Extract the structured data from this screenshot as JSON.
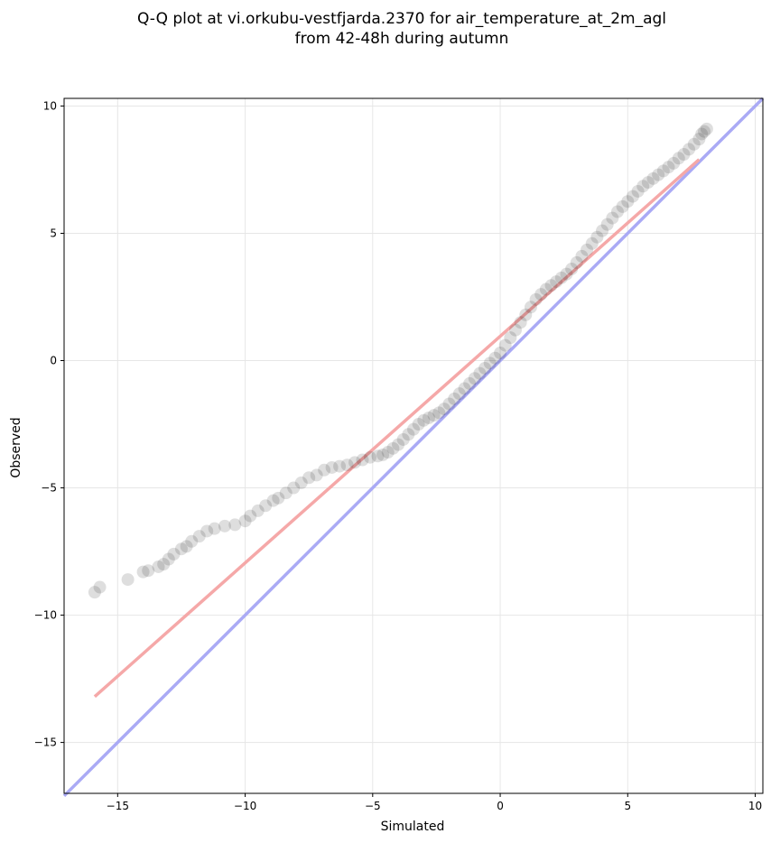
{
  "chart_data": {
    "type": "scatter",
    "title_lines": [
      "Q-Q plot at vi.orkubu-vestfjarda.2370 for air_temperature_at_2m_agl",
      "from 42-48h during autumn"
    ],
    "xlabel": "Simulated",
    "ylabel": "Observed",
    "xlim": [
      -17.1,
      10.3
    ],
    "ylim": [
      -17.0,
      10.3
    ],
    "xticks": [
      -15,
      -10,
      -5,
      0,
      5,
      10
    ],
    "yticks": [
      -15,
      -10,
      -5,
      0,
      5,
      10
    ],
    "xtick_labels": [
      "−15",
      "−10",
      "−5",
      "0",
      "5",
      "10"
    ],
    "ytick_labels": [
      "−15",
      "−10",
      "−5",
      "0",
      "5",
      "10"
    ],
    "grid": true,
    "identity_line": {
      "color": "#aaaaf5",
      "from": [
        -17.1,
        -17.1
      ],
      "to": [
        10.3,
        10.3
      ]
    },
    "fit_line": {
      "color": "#f5a8a8",
      "from": [
        -15.9,
        -13.2
      ],
      "to": [
        7.8,
        7.9
      ]
    },
    "point_color": "#000000",
    "series": [
      {
        "points": [
          [
            -15.9,
            -9.1
          ],
          [
            -15.7,
            -8.9
          ],
          [
            -14.6,
            -8.6
          ],
          [
            -14.0,
            -8.3
          ],
          [
            -13.8,
            -8.25
          ],
          [
            -13.4,
            -8.1
          ],
          [
            -13.2,
            -8.0
          ],
          [
            -13.0,
            -7.8
          ],
          [
            -12.8,
            -7.6
          ],
          [
            -12.5,
            -7.4
          ],
          [
            -12.3,
            -7.3
          ],
          [
            -12.1,
            -7.1
          ],
          [
            -11.8,
            -6.9
          ],
          [
            -11.5,
            -6.7
          ],
          [
            -11.2,
            -6.6
          ],
          [
            -10.8,
            -6.5
          ],
          [
            -10.4,
            -6.45
          ],
          [
            -10.0,
            -6.3
          ],
          [
            -9.8,
            -6.1
          ],
          [
            -9.5,
            -5.9
          ],
          [
            -9.2,
            -5.7
          ],
          [
            -8.9,
            -5.5
          ],
          [
            -8.7,
            -5.4
          ],
          [
            -8.4,
            -5.2
          ],
          [
            -8.1,
            -5.0
          ],
          [
            -7.8,
            -4.8
          ],
          [
            -7.5,
            -4.6
          ],
          [
            -7.2,
            -4.5
          ],
          [
            -6.9,
            -4.3
          ],
          [
            -6.6,
            -4.2
          ],
          [
            -6.3,
            -4.15
          ],
          [
            -6.0,
            -4.1
          ],
          [
            -5.7,
            -4.0
          ],
          [
            -5.4,
            -3.9
          ],
          [
            -5.1,
            -3.8
          ],
          [
            -4.8,
            -3.75
          ],
          [
            -4.6,
            -3.7
          ],
          [
            -4.4,
            -3.6
          ],
          [
            -4.2,
            -3.45
          ],
          [
            -4.0,
            -3.3
          ],
          [
            -3.8,
            -3.1
          ],
          [
            -3.6,
            -2.9
          ],
          [
            -3.4,
            -2.7
          ],
          [
            -3.2,
            -2.5
          ],
          [
            -3.0,
            -2.35
          ],
          [
            -2.8,
            -2.25
          ],
          [
            -2.6,
            -2.15
          ],
          [
            -2.4,
            -2.05
          ],
          [
            -2.2,
            -1.9
          ],
          [
            -2.0,
            -1.7
          ],
          [
            -1.8,
            -1.5
          ],
          [
            -1.6,
            -1.3
          ],
          [
            -1.4,
            -1.1
          ],
          [
            -1.2,
            -0.9
          ],
          [
            -1.0,
            -0.7
          ],
          [
            -0.8,
            -0.5
          ],
          [
            -0.6,
            -0.3
          ],
          [
            -0.4,
            -0.1
          ],
          [
            -0.2,
            0.1
          ],
          [
            0.0,
            0.3
          ],
          [
            0.2,
            0.6
          ],
          [
            0.4,
            0.9
          ],
          [
            0.6,
            1.2
          ],
          [
            0.8,
            1.5
          ],
          [
            1.0,
            1.8
          ],
          [
            1.2,
            2.1
          ],
          [
            1.4,
            2.4
          ],
          [
            1.6,
            2.6
          ],
          [
            1.8,
            2.8
          ],
          [
            2.0,
            2.95
          ],
          [
            2.2,
            3.1
          ],
          [
            2.4,
            3.25
          ],
          [
            2.6,
            3.4
          ],
          [
            2.8,
            3.6
          ],
          [
            3.0,
            3.85
          ],
          [
            3.2,
            4.1
          ],
          [
            3.4,
            4.35
          ],
          [
            3.6,
            4.6
          ],
          [
            3.8,
            4.85
          ],
          [
            4.0,
            5.1
          ],
          [
            4.2,
            5.35
          ],
          [
            4.4,
            5.6
          ],
          [
            4.6,
            5.85
          ],
          [
            4.8,
            6.05
          ],
          [
            5.0,
            6.25
          ],
          [
            5.2,
            6.45
          ],
          [
            5.4,
            6.65
          ],
          [
            5.6,
            6.85
          ],
          [
            5.8,
            7.0
          ],
          [
            6.0,
            7.15
          ],
          [
            6.2,
            7.3
          ],
          [
            6.4,
            7.45
          ],
          [
            6.6,
            7.6
          ],
          [
            6.8,
            7.75
          ],
          [
            7.0,
            7.95
          ],
          [
            7.2,
            8.1
          ],
          [
            7.4,
            8.3
          ],
          [
            7.6,
            8.5
          ],
          [
            7.8,
            8.7
          ],
          [
            7.9,
            8.9
          ],
          [
            8.0,
            9.0
          ],
          [
            8.1,
            9.1
          ]
        ]
      }
    ]
  }
}
